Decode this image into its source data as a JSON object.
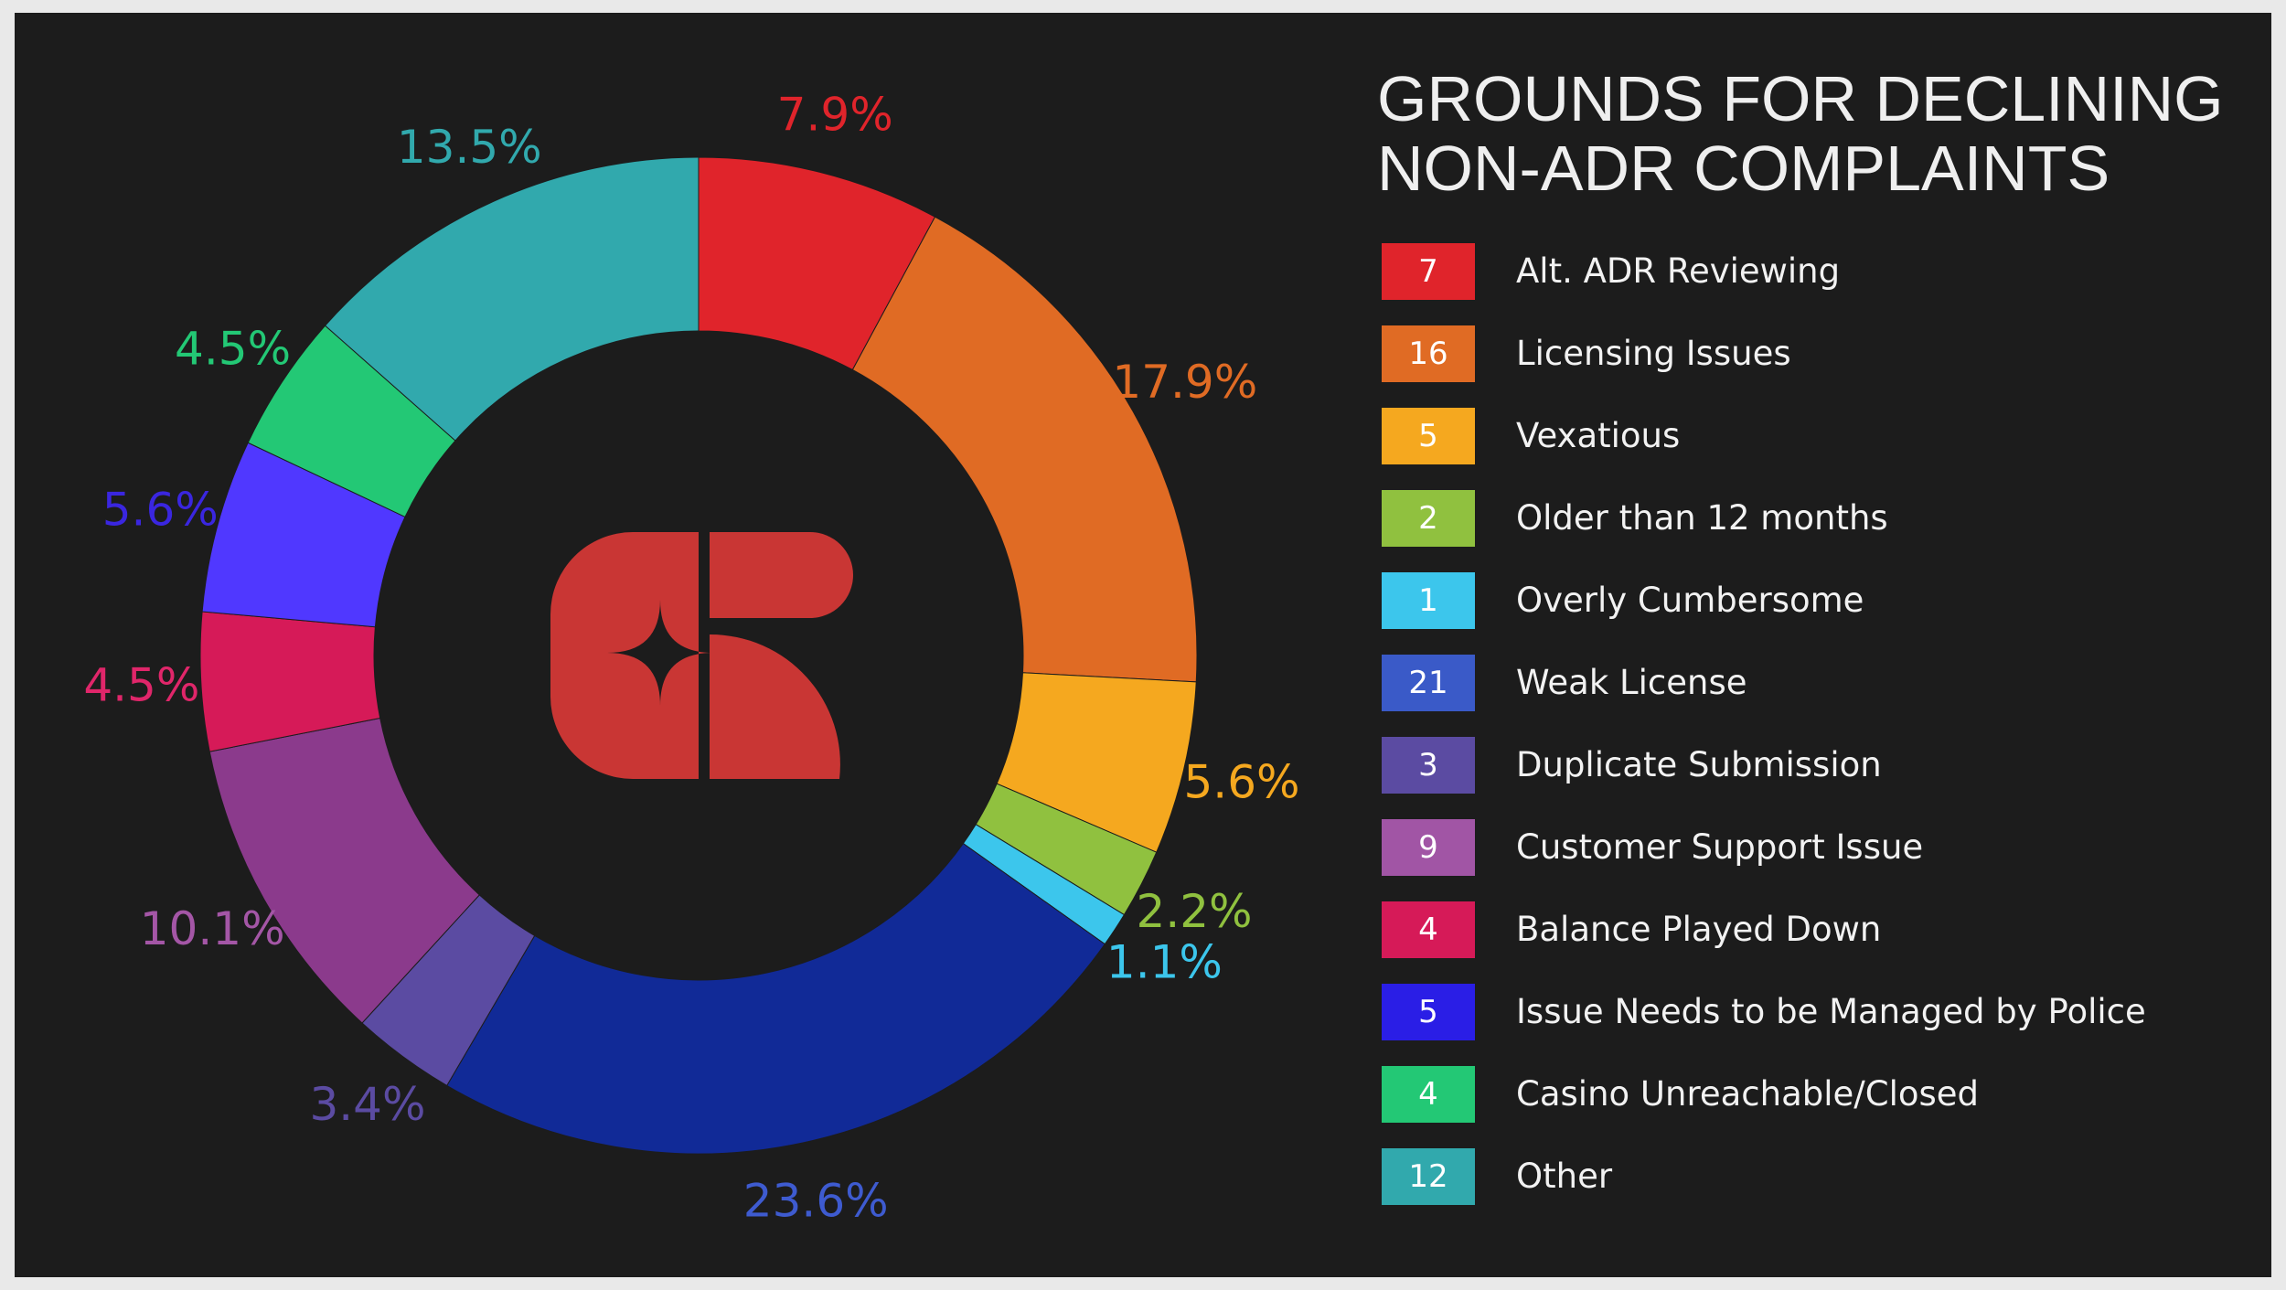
{
  "title": {
    "line1": "GROUNDS FOR DECLINING",
    "line2": "NON-ADR COMPLAINTS"
  },
  "logo": {
    "name": "casino-logo",
    "color": "#c93634"
  },
  "chart_data": {
    "type": "pie",
    "donut": true,
    "legend_placement": "right",
    "slices": [
      {
        "label": "Alt. ADR Reviewing",
        "value": 7,
        "percent_label": "7.9%",
        "color": "#e0242b",
        "label_color": "#e0242b"
      },
      {
        "label": "Licensing Issues",
        "value": 16,
        "percent_label": "17.9%",
        "color": "#e06b24",
        "label_color": "#e06b24"
      },
      {
        "label": "Vexatious",
        "value": 5,
        "percent_label": "5.6%",
        "color": "#f5a81f",
        "label_color": "#f5a81f"
      },
      {
        "label": "Older than 12 months",
        "value": 2,
        "percent_label": "2.2%",
        "color": "#90c13f",
        "label_color": "#90c13f"
      },
      {
        "label": "Overly Cumbersome",
        "value": 1,
        "percent_label": "1.1%",
        "color": "#3cc6ec",
        "label_color": "#3cc6ec"
      },
      {
        "label": "Weak License",
        "value": 21,
        "percent_label": "23.6%",
        "color": "#112a97",
        "label_color": "#3e5bd0",
        "swatch_color": "#3a5ac8"
      },
      {
        "label": "Duplicate Submission",
        "value": 3,
        "percent_label": "3.4%",
        "color": "#5b4ba2",
        "label_color": "#5b4ba2"
      },
      {
        "label": "Customer Support Issue",
        "value": 9,
        "percent_label": "10.1%",
        "color": "#8b3a8c",
        "label_color": "#a456a6",
        "swatch_color": "#a155a5"
      },
      {
        "label": "Balance Played Down",
        "value": 4,
        "percent_label": "4.5%",
        "color": "#d61a58",
        "label_color": "#e0266a"
      },
      {
        "label": "Issue Needs to be Managed by Police",
        "value": 5,
        "percent_label": "5.6%",
        "color": "#5038ff",
        "label_color": "#3a26e0",
        "swatch_color": "#2a1ee6"
      },
      {
        "label": "Casino Unreachable/Closed",
        "value": 4,
        "percent_label": "4.5%",
        "color": "#23c875",
        "label_color": "#23c875"
      },
      {
        "label": "Other",
        "value": 12,
        "percent_label": "13.5%",
        "color": "#31a9ad",
        "label_color": "#31a9ad"
      }
    ]
  }
}
